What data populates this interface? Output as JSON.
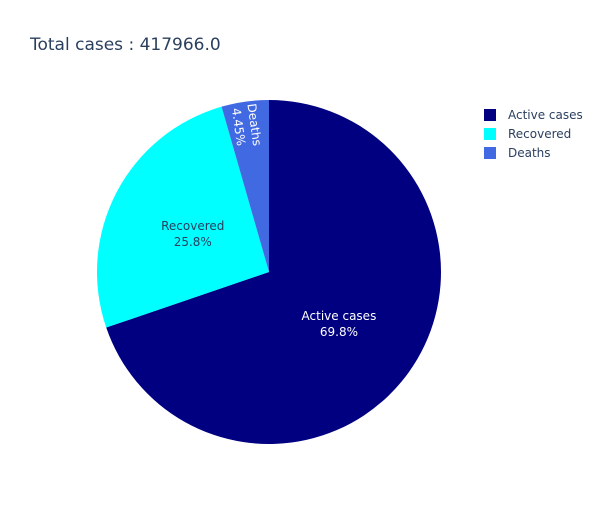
{
  "chart_data": {
    "type": "pie",
    "title": "Total cases : 417966.0",
    "slices": [
      {
        "label": "Active cases",
        "percent_label": "69.8%",
        "value": 69.8,
        "color": "#000080",
        "text_color": "#ffffff"
      },
      {
        "label": "Recovered",
        "percent_label": "25.8%",
        "value": 25.8,
        "color": "#00ffff",
        "text_color": "#2a3f5f"
      },
      {
        "label": "Deaths",
        "percent_label": "4.45%",
        "value": 4.45,
        "color": "#4169e1",
        "text_color": "#ffffff"
      }
    ],
    "legend": {
      "position": "top-right",
      "items": [
        "Active cases",
        "Recovered",
        "Deaths"
      ]
    }
  }
}
